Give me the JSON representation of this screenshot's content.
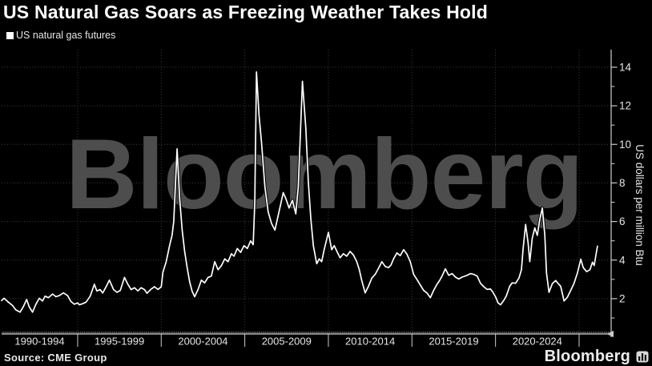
{
  "header": {
    "title": "US Natural Gas Soars as Freezing Weather Takes Hold"
  },
  "legend": {
    "label": "US natural gas futures"
  },
  "watermark": {
    "text": "Bloomberg"
  },
  "footer": {
    "source": "Source: CME Group",
    "brand": "Bloomberg",
    "brand_icon": "bloomberg-bars-icon"
  },
  "colors": {
    "background": "#000000",
    "title_text": "#ffffff",
    "muted_text": "#e5e5e5",
    "grid": "#3f3f3f",
    "axis": "#cccccc",
    "tick": "#9f9f9f",
    "watermark": "#4d4d4d",
    "line": "#ffffff"
  },
  "chart_data": {
    "type": "line",
    "title": "US Natural Gas Soars as Freezing Weather Takes Hold",
    "xlabel": "",
    "ylabel": "US dollars per million Btu",
    "legend_position": "top-left",
    "grid": "dotted",
    "xlim": [
      1990.45,
      2026.87
    ],
    "ylim": [
      0.17,
      14.91
    ],
    "y_ticks_major": [
      2,
      4,
      6,
      8,
      10,
      12,
      14
    ],
    "y_ticks_minor": [
      1,
      3,
      5,
      7,
      9,
      11,
      13,
      15
    ],
    "x_gridline_years": [
      1995,
      2000,
      2005,
      2010,
      2015,
      2020,
      2025
    ],
    "x_minor_tick_interval_years": 0.08333,
    "x_bands": [
      {
        "label": "1990-1994",
        "start": 1990,
        "end": 1995
      },
      {
        "label": "1995-1999",
        "start": 1995,
        "end": 2000
      },
      {
        "label": "2000-2004",
        "start": 2000,
        "end": 2005
      },
      {
        "label": "2005-2009",
        "start": 2005,
        "end": 2010
      },
      {
        "label": "2010-2014",
        "start": 2010,
        "end": 2015
      },
      {
        "label": "2015-2019",
        "start": 2015,
        "end": 2020
      },
      {
        "label": "2020-2024",
        "start": 2020,
        "end": 2025
      }
    ],
    "series": [
      {
        "name": "US natural gas futures",
        "color": "#ffffff",
        "points": [
          [
            1990.45,
            1.9
          ],
          [
            1990.6,
            2.02
          ],
          [
            1990.8,
            1.86
          ],
          [
            1991.1,
            1.65
          ],
          [
            1991.3,
            1.42
          ],
          [
            1991.55,
            1.3
          ],
          [
            1991.75,
            1.58
          ],
          [
            1991.95,
            1.96
          ],
          [
            1992.1,
            1.58
          ],
          [
            1992.3,
            1.3
          ],
          [
            1992.5,
            1.71
          ],
          [
            1992.7,
            2.02
          ],
          [
            1992.9,
            1.88
          ],
          [
            1993.05,
            2.13
          ],
          [
            1993.25,
            2.05
          ],
          [
            1993.5,
            2.24
          ],
          [
            1993.7,
            2.1
          ],
          [
            1993.9,
            2.16
          ],
          [
            1994.15,
            2.3
          ],
          [
            1994.4,
            2.16
          ],
          [
            1994.6,
            1.85
          ],
          [
            1994.8,
            1.71
          ],
          [
            1995.0,
            1.78
          ],
          [
            1995.1,
            1.68
          ],
          [
            1995.3,
            1.74
          ],
          [
            1995.5,
            1.82
          ],
          [
            1995.75,
            2.13
          ],
          [
            1996.0,
            2.75
          ],
          [
            1996.15,
            2.4
          ],
          [
            1996.35,
            2.47
          ],
          [
            1996.5,
            2.29
          ],
          [
            1996.7,
            2.61
          ],
          [
            1996.9,
            2.96
          ],
          [
            1997.15,
            2.47
          ],
          [
            1997.35,
            2.33
          ],
          [
            1997.55,
            2.43
          ],
          [
            1997.8,
            3.1
          ],
          [
            1998.0,
            2.75
          ],
          [
            1998.2,
            2.47
          ],
          [
            1998.4,
            2.57
          ],
          [
            1998.6,
            2.4
          ],
          [
            1998.8,
            2.57
          ],
          [
            1999.0,
            2.47
          ],
          [
            1999.15,
            2.28
          ],
          [
            1999.4,
            2.5
          ],
          [
            1999.6,
            2.62
          ],
          [
            1999.8,
            2.48
          ],
          [
            2000.0,
            2.61
          ],
          [
            2000.1,
            3.37
          ],
          [
            2000.3,
            3.92
          ],
          [
            2000.5,
            4.75
          ],
          [
            2000.65,
            5.3
          ],
          [
            2000.75,
            6.0
          ],
          [
            2000.95,
            9.77
          ],
          [
            2001.1,
            7.25
          ],
          [
            2001.25,
            5.57
          ],
          [
            2001.4,
            4.46
          ],
          [
            2001.55,
            3.63
          ],
          [
            2001.7,
            2.87
          ],
          [
            2001.85,
            2.38
          ],
          [
            2002.0,
            2.1
          ],
          [
            2002.2,
            2.47
          ],
          [
            2002.4,
            2.96
          ],
          [
            2002.6,
            2.82
          ],
          [
            2002.8,
            3.1
          ],
          [
            2003.0,
            3.17
          ],
          [
            2003.2,
            3.92
          ],
          [
            2003.4,
            3.5
          ],
          [
            2003.6,
            3.71
          ],
          [
            2003.8,
            4.06
          ],
          [
            2004.0,
            3.92
          ],
          [
            2004.2,
            4.33
          ],
          [
            2004.35,
            4.2
          ],
          [
            2004.55,
            4.6
          ],
          [
            2004.75,
            4.4
          ],
          [
            2004.95,
            4.75
          ],
          [
            2005.15,
            4.6
          ],
          [
            2005.35,
            5.0
          ],
          [
            2005.5,
            4.8
          ],
          [
            2005.6,
            7.0
          ],
          [
            2005.7,
            13.75
          ],
          [
            2005.85,
            11.5
          ],
          [
            2006.0,
            10.1
          ],
          [
            2006.2,
            7.8
          ],
          [
            2006.4,
            6.5
          ],
          [
            2006.6,
            5.9
          ],
          [
            2006.8,
            5.55
          ],
          [
            2007.1,
            6.7
          ],
          [
            2007.3,
            7.5
          ],
          [
            2007.45,
            7.2
          ],
          [
            2007.65,
            6.7
          ],
          [
            2007.85,
            7.1
          ],
          [
            2008.05,
            6.4
          ],
          [
            2008.2,
            7.8
          ],
          [
            2008.45,
            13.27
          ],
          [
            2008.65,
            10.84
          ],
          [
            2008.8,
            8.07
          ],
          [
            2008.95,
            6.13
          ],
          [
            2009.1,
            4.75
          ],
          [
            2009.3,
            3.81
          ],
          [
            2009.45,
            4.06
          ],
          [
            2009.6,
            3.92
          ],
          [
            2009.75,
            4.54
          ],
          [
            2010.0,
            5.44
          ],
          [
            2010.2,
            4.54
          ],
          [
            2010.35,
            4.75
          ],
          [
            2010.5,
            4.47
          ],
          [
            2010.7,
            4.12
          ],
          [
            2010.9,
            4.33
          ],
          [
            2011.1,
            4.2
          ],
          [
            2011.3,
            4.45
          ],
          [
            2011.5,
            4.26
          ],
          [
            2011.7,
            3.92
          ],
          [
            2011.85,
            3.5
          ],
          [
            2012.0,
            2.93
          ],
          [
            2012.2,
            2.3
          ],
          [
            2012.4,
            2.64
          ],
          [
            2012.6,
            3.07
          ],
          [
            2012.8,
            3.26
          ],
          [
            2013.0,
            3.58
          ],
          [
            2013.2,
            3.92
          ],
          [
            2013.4,
            3.67
          ],
          [
            2013.6,
            3.61
          ],
          [
            2013.75,
            3.75
          ],
          [
            2013.9,
            4.06
          ],
          [
            2014.1,
            4.37
          ],
          [
            2014.3,
            4.23
          ],
          [
            2014.5,
            4.54
          ],
          [
            2014.7,
            4.31
          ],
          [
            2014.9,
            3.92
          ],
          [
            2015.1,
            3.26
          ],
          [
            2015.3,
            2.99
          ],
          [
            2015.5,
            2.71
          ],
          [
            2015.7,
            2.43
          ],
          [
            2015.9,
            2.29
          ],
          [
            2016.1,
            2.05
          ],
          [
            2016.3,
            2.43
          ],
          [
            2016.5,
            2.75
          ],
          [
            2016.65,
            2.93
          ],
          [
            2016.8,
            3.17
          ],
          [
            2017.0,
            3.55
          ],
          [
            2017.2,
            3.21
          ],
          [
            2017.4,
            3.3
          ],
          [
            2017.6,
            3.12
          ],
          [
            2017.8,
            3.02
          ],
          [
            2018.0,
            3.12
          ],
          [
            2018.3,
            3.21
          ],
          [
            2018.5,
            3.3
          ],
          [
            2018.7,
            3.26
          ],
          [
            2018.9,
            3.17
          ],
          [
            2019.1,
            2.8
          ],
          [
            2019.3,
            2.62
          ],
          [
            2019.5,
            2.48
          ],
          [
            2019.7,
            2.5
          ],
          [
            2019.85,
            2.33
          ],
          [
            2020.0,
            2.1
          ],
          [
            2020.15,
            1.78
          ],
          [
            2020.3,
            1.68
          ],
          [
            2020.5,
            1.92
          ],
          [
            2020.65,
            2.15
          ],
          [
            2020.85,
            2.65
          ],
          [
            2021.0,
            2.82
          ],
          [
            2021.2,
            2.8
          ],
          [
            2021.4,
            3.07
          ],
          [
            2021.55,
            3.5
          ],
          [
            2021.65,
            4.6
          ],
          [
            2021.8,
            5.85
          ],
          [
            2021.95,
            4.9
          ],
          [
            2022.05,
            3.92
          ],
          [
            2022.2,
            5.14
          ],
          [
            2022.35,
            5.67
          ],
          [
            2022.5,
            5.28
          ],
          [
            2022.65,
            6.11
          ],
          [
            2022.8,
            6.7
          ],
          [
            2022.95,
            5.28
          ],
          [
            2023.05,
            3.33
          ],
          [
            2023.2,
            2.33
          ],
          [
            2023.4,
            2.78
          ],
          [
            2023.6,
            2.94
          ],
          [
            2023.75,
            2.78
          ],
          [
            2023.9,
            2.64
          ],
          [
            2024.1,
            1.88
          ],
          [
            2024.3,
            2.08
          ],
          [
            2024.5,
            2.43
          ],
          [
            2024.7,
            2.8
          ],
          [
            2024.9,
            3.33
          ],
          [
            2025.1,
            4.05
          ],
          [
            2025.25,
            3.61
          ],
          [
            2025.45,
            3.4
          ],
          [
            2025.65,
            3.5
          ],
          [
            2025.8,
            3.89
          ],
          [
            2025.9,
            3.72
          ],
          [
            2026.1,
            4.72
          ]
        ]
      }
    ]
  }
}
